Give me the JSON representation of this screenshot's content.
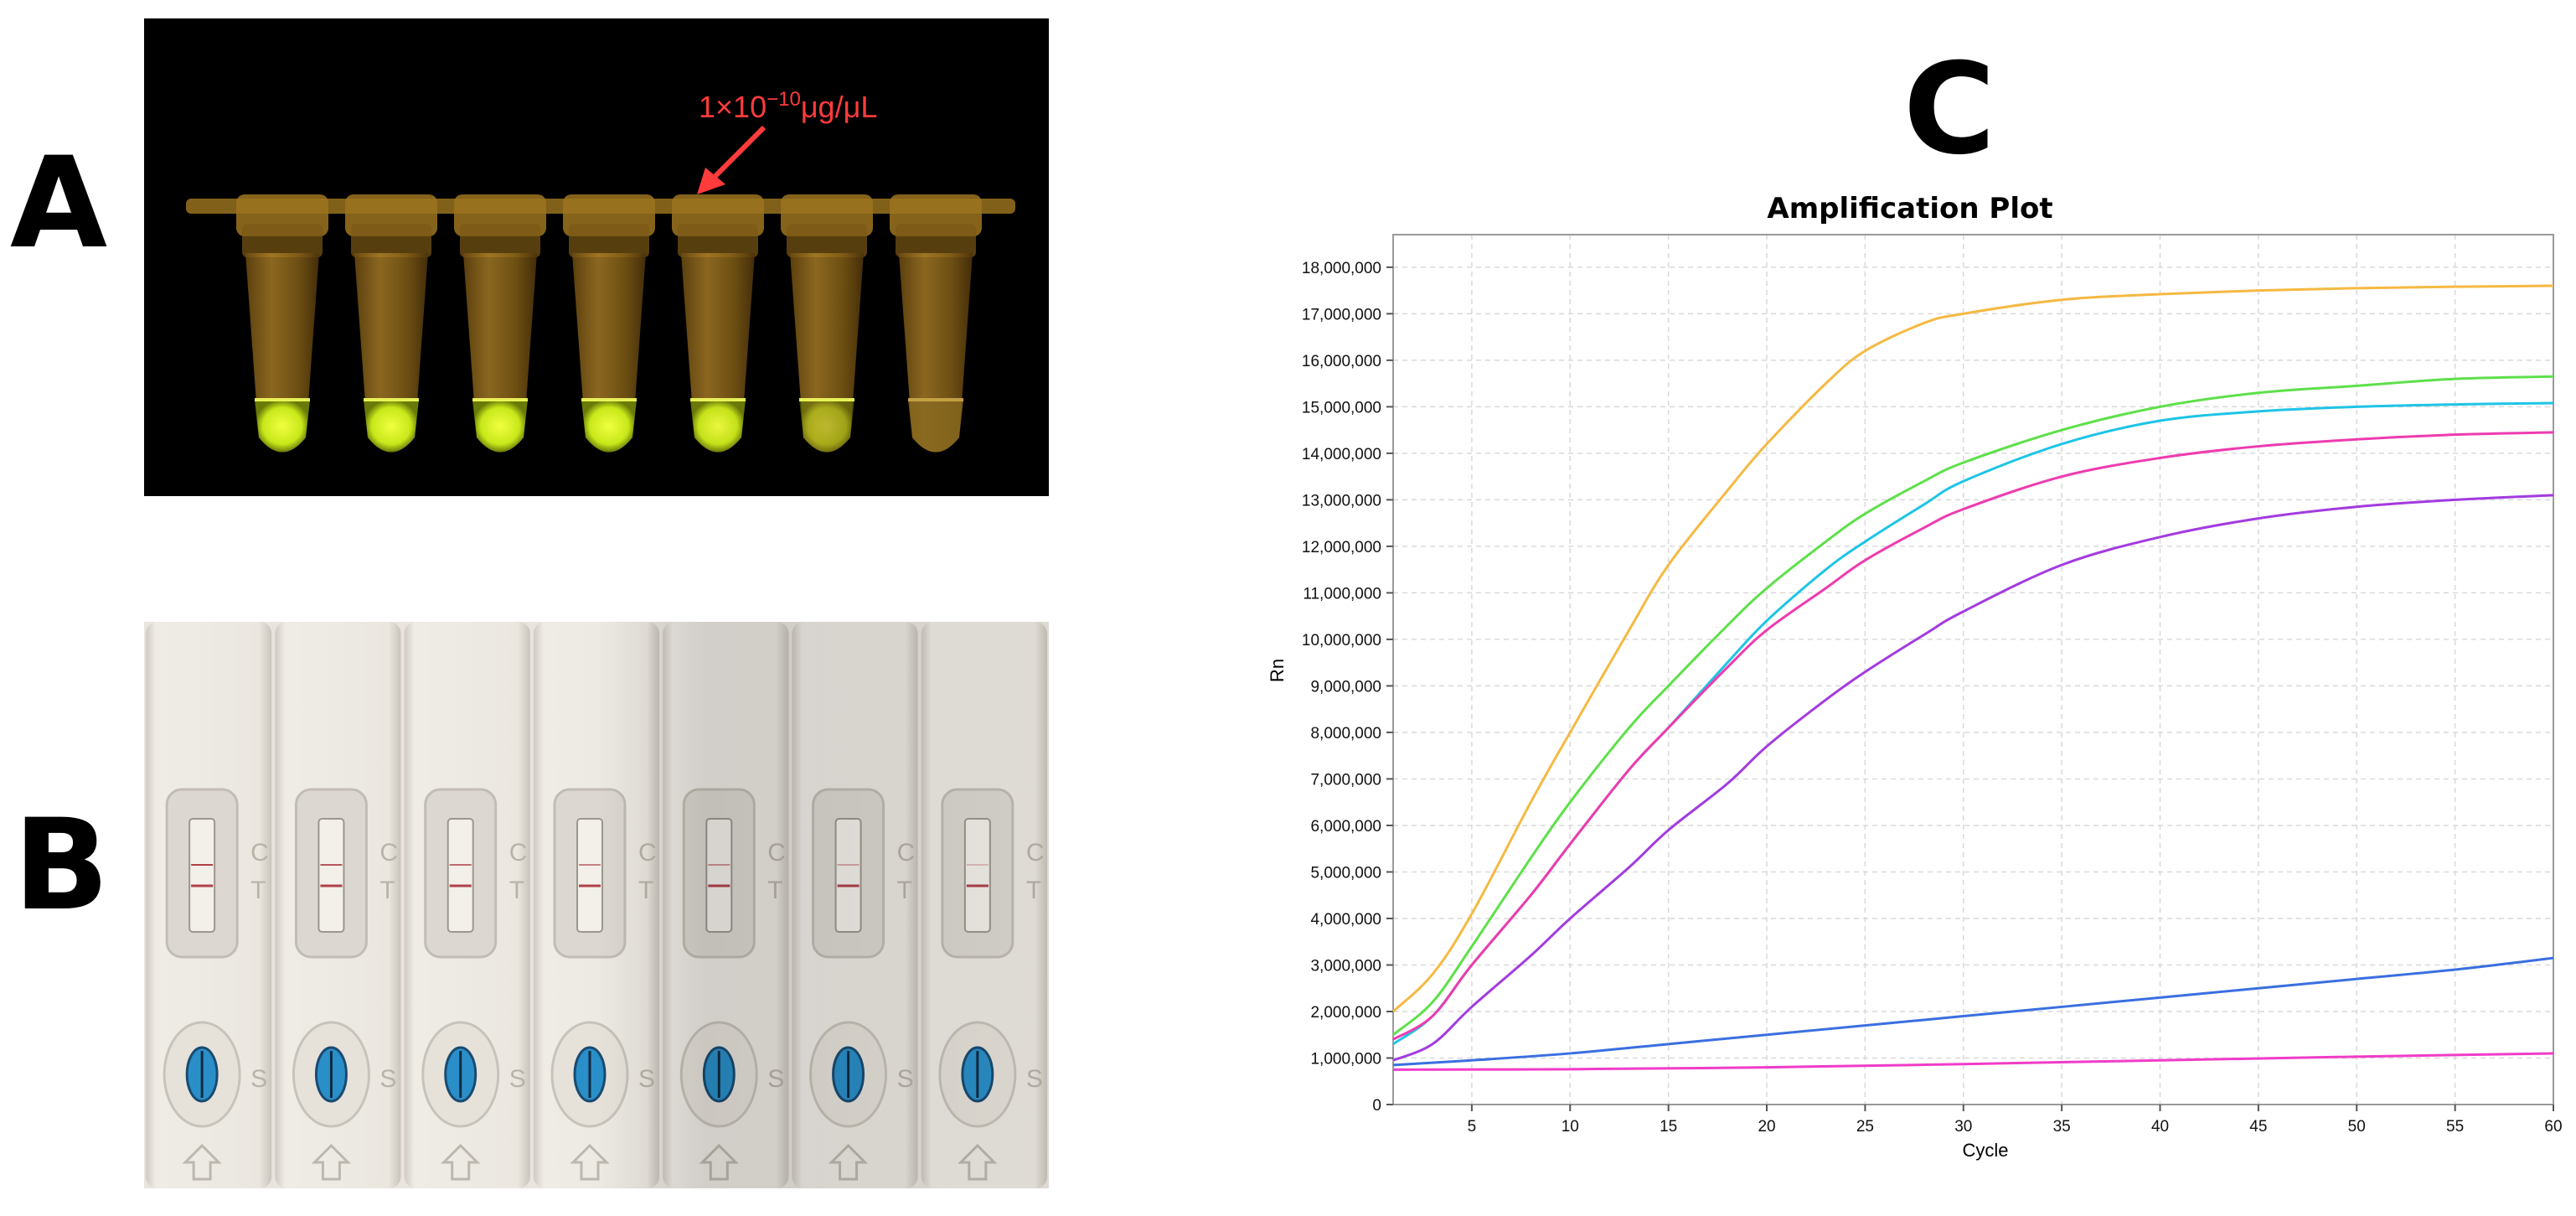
{
  "panels": {
    "a": "A",
    "b": "B",
    "c": "C"
  },
  "photo_a": {
    "annotation": "1×10",
    "annotation_sup": "−10",
    "annotation_unit": "μg/μL",
    "tube_count": 7,
    "colors": {
      "arrow": "#ff3b3b",
      "fluorescence": "#d7f21f"
    }
  },
  "photo_b": {
    "strip_count": 7,
    "control_letter": "C",
    "test_letter": "T",
    "sample_letter": "S"
  },
  "chart_data": {
    "type": "line",
    "title": "Amplification Plot",
    "xlabel": "Cycle",
    "ylabel": "Rn",
    "xlim": [
      1,
      60
    ],
    "ylim": [
      0,
      18700000
    ],
    "xticks": [
      5,
      10,
      15,
      20,
      25,
      30,
      35,
      40,
      45,
      50,
      55,
      60
    ],
    "yticks": [
      0,
      1000000,
      2000000,
      3000000,
      4000000,
      5000000,
      6000000,
      7000000,
      8000000,
      9000000,
      10000000,
      11000000,
      12000000,
      13000000,
      14000000,
      15000000,
      16000000,
      17000000,
      18000000
    ],
    "ytick_labels": [
      "0",
      "1,000,000",
      "2,000,000",
      "3,000,000",
      "4,000,000",
      "5,000,000",
      "6,000,000",
      "7,000,000",
      "8,000,000",
      "9,000,000",
      "10,000,000",
      "11,000,000",
      "12,000,000",
      "13,000,000",
      "14,000,000",
      "15,000,000",
      "16,000,000",
      "17,000,000",
      "18,000,000"
    ],
    "grid": true,
    "legend": "none",
    "series": [
      {
        "color": "#f5b942",
        "x": [
          1,
          3,
          5,
          8,
          10,
          13,
          15,
          18,
          20,
          23,
          25,
          28,
          30,
          35,
          40,
          45,
          50,
          55,
          60
        ],
        "y": [
          2000000,
          2800000,
          4100000,
          6500000,
          8000000,
          10200000,
          11600000,
          13200000,
          14200000,
          15500000,
          16200000,
          16800000,
          17000000,
          17300000,
          17420000,
          17500000,
          17550000,
          17580000,
          17600000
        ]
      },
      {
        "color": "#5ee04a",
        "x": [
          1,
          3,
          5,
          8,
          10,
          13,
          15,
          18,
          20,
          23,
          25,
          28,
          30,
          35,
          40,
          45,
          50,
          55,
          60
        ],
        "y": [
          1500000,
          2200000,
          3400000,
          5300000,
          6500000,
          8100000,
          9000000,
          10300000,
          11100000,
          12100000,
          12700000,
          13400000,
          13800000,
          14500000,
          15000000,
          15300000,
          15450000,
          15600000,
          15650000
        ]
      },
      {
        "color": "#1ec4e6",
        "x": [
          1,
          3,
          5,
          8,
          10,
          13,
          15,
          18,
          20,
          23,
          25,
          28,
          30,
          35,
          40,
          45,
          50,
          55,
          60
        ],
        "y": [
          1300000,
          1900000,
          3000000,
          4500000,
          5600000,
          7200000,
          8100000,
          9500000,
          10400000,
          11500000,
          12100000,
          12900000,
          13400000,
          14200000,
          14700000,
          14900000,
          15000000,
          15050000,
          15080000
        ]
      },
      {
        "color": "#ee3bb0",
        "x": [
          1,
          3,
          5,
          8,
          10,
          13,
          15,
          18,
          20,
          23,
          25,
          28,
          30,
          35,
          40,
          45,
          50,
          55,
          60
        ],
        "y": [
          1400000,
          1900000,
          3000000,
          4500000,
          5600000,
          7200000,
          8100000,
          9400000,
          10200000,
          11100000,
          11700000,
          12400000,
          12800000,
          13500000,
          13900000,
          14150000,
          14300000,
          14400000,
          14450000
        ]
      },
      {
        "color": "#a33be0",
        "x": [
          1,
          3,
          5,
          8,
          10,
          13,
          15,
          18,
          20,
          23,
          25,
          28,
          30,
          35,
          40,
          45,
          50,
          55,
          60
        ],
        "y": [
          950000,
          1300000,
          2100000,
          3200000,
          4000000,
          5100000,
          5900000,
          6900000,
          7700000,
          8700000,
          9300000,
          10100000,
          10600000,
          11600000,
          12200000,
          12600000,
          12850000,
          13000000,
          13100000
        ]
      },
      {
        "color": "#3a6fe0",
        "x": [
          1,
          5,
          10,
          15,
          20,
          25,
          30,
          35,
          40,
          45,
          50,
          55,
          60
        ],
        "y": [
          850000,
          950000,
          1100000,
          1300000,
          1500000,
          1700000,
          1900000,
          2100000,
          2300000,
          2500000,
          2700000,
          2900000,
          3150000
        ]
      },
      {
        "color": "#f03cc8",
        "x": [
          1,
          10,
          20,
          30,
          40,
          50,
          60
        ],
        "y": [
          750000,
          760000,
          800000,
          870000,
          950000,
          1030000,
          1100000
        ]
      }
    ]
  }
}
